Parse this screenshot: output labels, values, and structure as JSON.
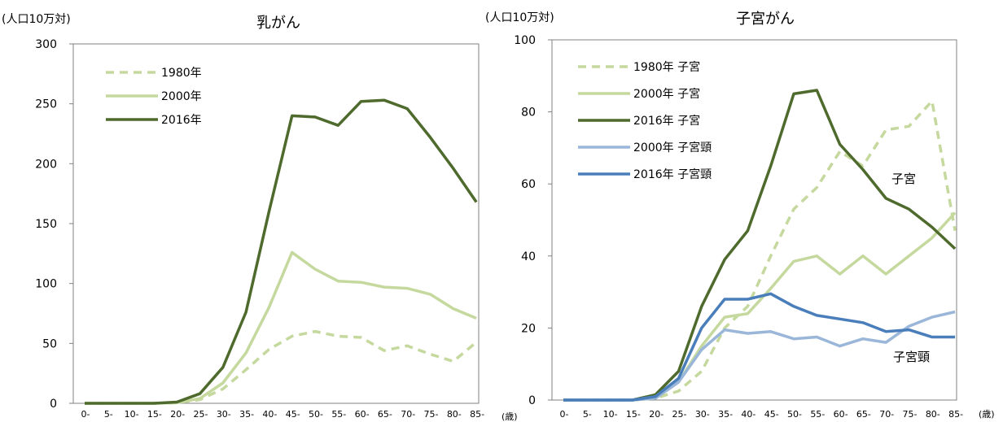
{
  "chart_data": [
    {
      "type": "line",
      "title": "乳がん",
      "ylabel": "(人口10万対)",
      "xlabel": "(歳)",
      "ylim": [
        0,
        300
      ],
      "yticks": [
        0,
        50,
        100,
        150,
        200,
        250,
        300
      ],
      "categories": [
        "0-",
        "5-",
        "10-",
        "15-",
        "20-",
        "25-",
        "30-",
        "35-",
        "40-",
        "45-",
        "50-",
        "55-",
        "60-",
        "65-",
        "70-",
        "75-",
        "80-",
        "85-"
      ],
      "grid": false,
      "legend": "top-left",
      "series": [
        {
          "name": "1980年",
          "style": "dashed",
          "color": "#c5d99e",
          "values": [
            0,
            0,
            0,
            0,
            0.5,
            3,
            12,
            28,
            45,
            56,
            60,
            56,
            55,
            44,
            48,
            41,
            35,
            51
          ]
        },
        {
          "name": "2000年",
          "style": "solid",
          "color": "#c5d99e",
          "values": [
            0,
            0,
            0,
            0,
            0.5,
            4,
            17,
            42,
            80,
            126,
            112,
            102,
            101,
            97,
            96,
            91,
            79,
            71
          ]
        },
        {
          "name": "2016年",
          "style": "solid",
          "color": "#4e6a2c",
          "values": [
            0,
            0,
            0,
            0,
            1,
            8,
            30,
            76,
            160,
            240,
            239,
            232,
            252,
            253,
            246,
            222,
            196,
            168
          ]
        }
      ]
    },
    {
      "type": "line",
      "title": "子宮がん",
      "ylabel": "(人口10万対)",
      "xlabel": "(歳)",
      "ylim": [
        0,
        100
      ],
      "yticks": [
        0,
        20,
        40,
        60,
        80,
        100
      ],
      "categories": [
        "0-",
        "5-",
        "10-",
        "15-",
        "20-",
        "25-",
        "30-",
        "35-",
        "40-",
        "45-",
        "50-",
        "55-",
        "60-",
        "65-",
        "70-",
        "75-",
        "80-",
        "85-"
      ],
      "grid": false,
      "legend": "top-left",
      "annotations": [
        "子宮",
        "子宮頸"
      ],
      "series": [
        {
          "name": "1980年 子宮",
          "style": "dashed",
          "color": "#c5d99e",
          "values": [
            0,
            0,
            0,
            0,
            0.5,
            2.5,
            8,
            20,
            26,
            40,
            53,
            59,
            69,
            65,
            75,
            76,
            83,
            47
          ]
        },
        {
          "name": "2000年 子宮",
          "style": "solid",
          "color": "#c5d99e",
          "values": [
            0,
            0,
            0,
            0,
            0.5,
            5,
            15,
            23,
            24,
            31,
            38.5,
            40,
            35,
            40,
            35,
            40,
            45,
            52
          ]
        },
        {
          "name": "2016年 子宮",
          "style": "solid",
          "color": "#4e6a2c",
          "values": [
            0,
            0,
            0,
            0,
            1.5,
            8,
            26,
            39,
            47,
            65,
            85,
            86,
            71,
            64,
            56,
            53,
            48,
            42
          ]
        },
        {
          "name": "2000年 子宮頸",
          "style": "solid",
          "color": "#9ab6d9",
          "values": [
            0,
            0,
            0,
            0,
            0.5,
            5,
            14,
            19.5,
            18.5,
            19,
            17,
            17.5,
            15,
            17,
            16,
            20.5,
            23,
            24.5
          ]
        },
        {
          "name": "2016年 子宮頸",
          "style": "solid",
          "color": "#4a7ebb",
          "values": [
            0,
            0,
            0,
            0,
            1,
            6,
            20,
            28,
            28,
            29.5,
            26,
            23.5,
            22.5,
            21.5,
            19,
            19.5,
            17.5,
            17.5
          ]
        }
      ]
    }
  ]
}
